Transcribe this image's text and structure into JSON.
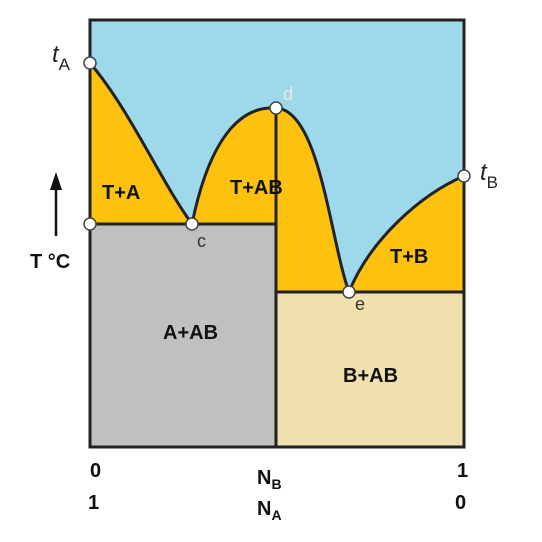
{
  "diagram": {
    "points": {
      "tA": {
        "symbol": "t",
        "subscript": "A"
      },
      "tB": {
        "symbol": "t",
        "subscript": "B"
      },
      "d": "d",
      "c": "c",
      "e": "e"
    },
    "regions": [
      "T+A",
      "T+AB",
      "T+B",
      "A+AB",
      "B+AB"
    ],
    "y_axis_label": "T °C",
    "x_axis": {
      "left": {
        "top": "0",
        "bottom": "1"
      },
      "middle": {
        "top": {
          "symbol": "N",
          "subscript": "B"
        },
        "bottom": {
          "symbol": "N",
          "subscript": "A"
        }
      },
      "right": {
        "top": "1",
        "bottom": "0"
      }
    }
  }
}
